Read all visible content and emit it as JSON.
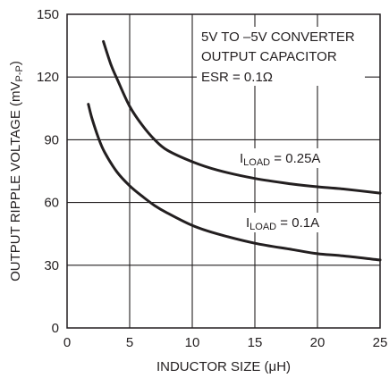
{
  "chart_data": {
    "type": "line",
    "title": "",
    "xlabel_prefix": "INDUCTOR SIZE (",
    "xlabel_unit_mu": "μ",
    "xlabel_suffix": "H)",
    "ylabel_prefix": "OUTPUT RIPPLE VOLTAGE (mV",
    "ylabel_sub": "P-P",
    "ylabel_suffix": ")",
    "xlim": [
      0,
      25
    ],
    "ylim": [
      0,
      150
    ],
    "xticks": [
      "0",
      "5",
      "10",
      "15",
      "20",
      "25"
    ],
    "yticks": [
      "0",
      "30",
      "60",
      "90",
      "120",
      "150"
    ],
    "grid": true,
    "annotation": {
      "line1": "5V TO –5V CONVERTER",
      "line2": "OUTPUT CAPACITOR",
      "line3": "ESR = 0.1Ω"
    },
    "series": [
      {
        "name_main": "I",
        "name_sub": "LOAD",
        "name_value": " = 0.25A",
        "x": [
          2.9,
          3.5,
          4,
          5,
          6,
          7,
          8,
          10,
          12,
          15,
          18,
          20,
          22,
          25
        ],
        "y": [
          137,
          126,
          119,
          106,
          97,
          90,
          85,
          79.5,
          75.5,
          71.5,
          68.8,
          67.5,
          66.5,
          64.5
        ]
      },
      {
        "name_main": "I",
        "name_sub": "LOAD",
        "name_value": " = 0.1A",
        "x": [
          1.7,
          2,
          2.5,
          3,
          4,
          5,
          6,
          7,
          8,
          10,
          12,
          15,
          18,
          20,
          22,
          25
        ],
        "y": [
          107,
          100,
          91,
          84,
          74.5,
          68,
          63,
          58.5,
          55,
          49,
          45,
          40.5,
          37.5,
          35.5,
          34.5,
          32.5
        ]
      }
    ]
  }
}
